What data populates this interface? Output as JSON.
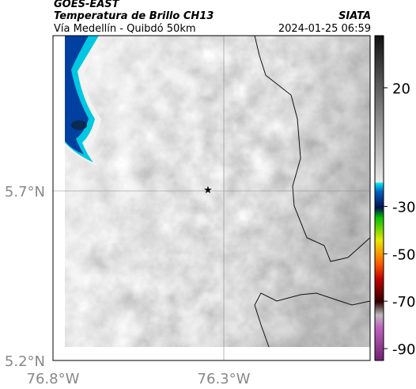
{
  "header": {
    "satellite": "GOES-EAST",
    "product": "Temperatura de Brillo CH13",
    "source": "SIATA",
    "region": "Vía Medellín - Quibdó 50km",
    "datetime": "2024-01-25 06:59"
  },
  "axes": {
    "lat_labels": [
      "5.7°N",
      "5.2°N"
    ],
    "lon_labels": [
      "76.8°W",
      "76.3°W"
    ]
  },
  "colorbar": {
    "lim": [
      -95,
      42
    ],
    "ticks": [
      20,
      -30,
      -50,
      -70,
      -90
    ]
  }
}
